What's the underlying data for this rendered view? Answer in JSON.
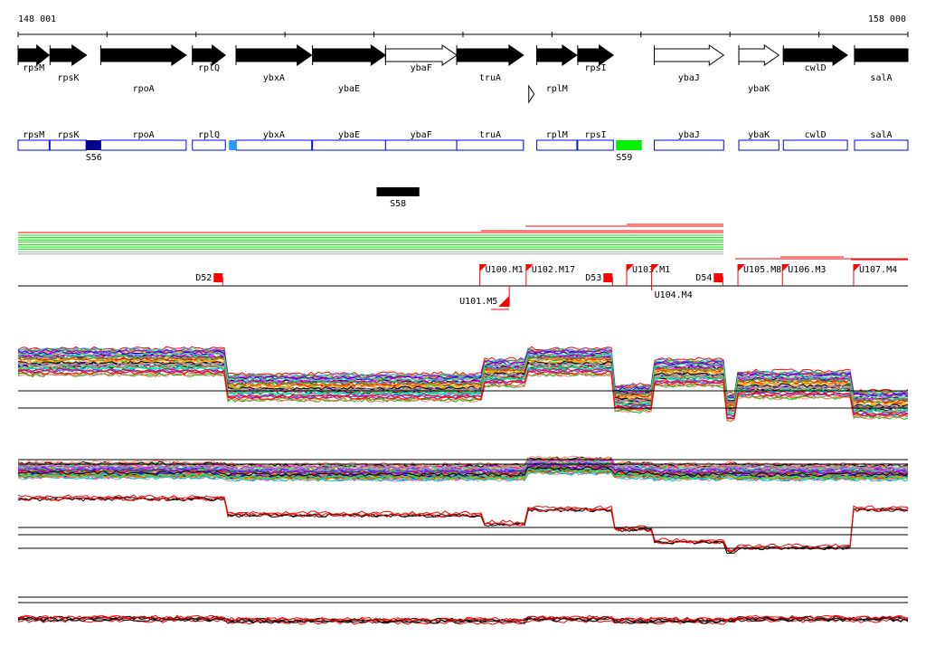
{
  "axis": {
    "start_label": "148 001",
    "end_label": "158 000",
    "start": 148001,
    "end": 158000,
    "tick_interval": 1000
  },
  "genes": [
    {
      "name": "rpsM",
      "start": 148001,
      "end": 148350,
      "strand": "+",
      "filled": true,
      "row": 0
    },
    {
      "name": "rpsK",
      "start": 148360,
      "end": 148770,
      "strand": "+",
      "filled": true,
      "row": 1
    },
    {
      "name": "rpoA",
      "start": 148930,
      "end": 149890,
      "strand": "+",
      "filled": true,
      "row": 2
    },
    {
      "name": "rplQ",
      "start": 149960,
      "end": 150330,
      "strand": "+",
      "filled": true,
      "row": 0
    },
    {
      "name": "ybxA",
      "start": 150450,
      "end": 151300,
      "strand": "+",
      "filled": true,
      "row": 1
    },
    {
      "name": "ybaE",
      "start": 151310,
      "end": 152130,
      "strand": "+",
      "filled": true,
      "row": 2
    },
    {
      "name": "ybaF",
      "start": 152130,
      "end": 152930,
      "strand": "+",
      "filled": false,
      "row": 0
    },
    {
      "name": "truA",
      "start": 152930,
      "end": 153680,
      "strand": "+",
      "filled": true,
      "row": 1
    },
    {
      "name": "rplM",
      "start": 153830,
      "end": 154280,
      "strand": "+",
      "filled": true,
      "row": 2
    },
    {
      "name": "rpsI",
      "start": 154290,
      "end": 154690,
      "strand": "+",
      "filled": true,
      "row": 0
    },
    {
      "name": "ybaJ",
      "start": 155150,
      "end": 155930,
      "strand": "+",
      "filled": false,
      "row": 1
    },
    {
      "name": "ybaK",
      "start": 156100,
      "end": 156550,
      "strand": "+",
      "filled": false,
      "row": 2
    },
    {
      "name": "cwlD",
      "start": 156600,
      "end": 157320,
      "strand": "+",
      "filled": true,
      "row": 0
    },
    {
      "name": "salA",
      "start": 157400,
      "end": 158000,
      "strand": "+",
      "filled": true,
      "row": 1,
      "no_head": true
    }
  ],
  "small_feature": {
    "start": 153740,
    "end": 153800
  },
  "gene_boxes": [
    "rpsM",
    "rpsK",
    "rpoA",
    "rplQ",
    "ybxA",
    "ybaE",
    "ybaF",
    "truA",
    "rplM",
    "rpsI",
    "ybaJ",
    "ybaK",
    "cwlD",
    "salA"
  ],
  "box_markers": [
    {
      "label": "S56",
      "start": 148760,
      "end": 148930,
      "color": "#000090"
    },
    {
      "label": "",
      "start": 150370,
      "end": 150450,
      "color": "#1ea0ff"
    },
    {
      "label": "S59",
      "start": 154720,
      "end": 155010,
      "color": "#00ee00"
    }
  ],
  "segment": {
    "label": "S58",
    "start": 152030,
    "end": 152510
  },
  "colors": {
    "red": "#ff0000",
    "green": "#00ee00",
    "blue": "#0000ee"
  },
  "flags": [
    {
      "label": "D52",
      "pos": 150300,
      "type": "D",
      "side": "left"
    },
    {
      "label": "U100.M1",
      "pos": 153190,
      "type": "U"
    },
    {
      "label": "U102.M17",
      "pos": 153710,
      "type": "U"
    },
    {
      "label": "D53",
      "pos": 154680,
      "type": "D",
      "side": "left"
    },
    {
      "label": "U103.M1",
      "pos": 154840,
      "type": "U"
    },
    {
      "label": "U104.M4",
      "pos": 155120,
      "type": "U"
    },
    {
      "label": "D54",
      "pos": 155920,
      "type": "D",
      "side": "left"
    },
    {
      "label": "U105.M8",
      "pos": 156090,
      "type": "U"
    },
    {
      "label": "U106.M3",
      "pos": 156590,
      "type": "U"
    },
    {
      "label": "U107.M4",
      "pos": 157390,
      "type": "U"
    },
    {
      "label": "U101.M5",
      "pos": 153520,
      "type": "U",
      "below": true
    }
  ]
}
